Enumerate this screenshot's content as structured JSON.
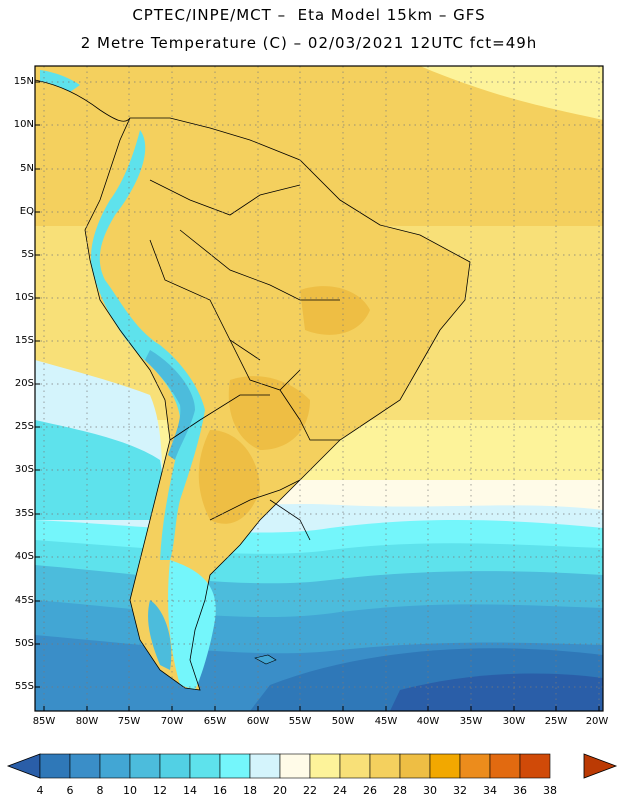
{
  "header": {
    "line1": "CPTEC/INPE/MCT –  Eta Model 15km – GFS",
    "line2": "2 Metre Temperature (C) – 02/03/2021 12UTC fct=49h"
  },
  "map": {
    "lat_labels": [
      "15N",
      "10N",
      "5N",
      "EQ",
      "5S",
      "10S",
      "15S",
      "20S",
      "25S",
      "30S",
      "35S",
      "40S",
      "45S",
      "50S",
      "55S"
    ],
    "lon_labels": [
      "85W",
      "80W",
      "75W",
      "70W",
      "65W",
      "60W",
      "55W",
      "50W",
      "45W",
      "40W",
      "35W",
      "30W",
      "25W",
      "20W"
    ],
    "grid": "dotted",
    "coastline_color": "#000000"
  },
  "colorbar": {
    "levels": [
      "4",
      "6",
      "8",
      "10",
      "12",
      "14",
      "16",
      "18",
      "20",
      "22",
      "24",
      "26",
      "28",
      "30",
      "32",
      "34",
      "36",
      "38"
    ],
    "colors": [
      "#2a5ea8",
      "#2f78b8",
      "#3a8ec8",
      "#42a6d4",
      "#4cbcdc",
      "#52d0e4",
      "#5ee2ec",
      "#74f6fb",
      "#d4f4fc",
      "#fffbe8",
      "#fdf39a",
      "#f8e078",
      "#f4d05e",
      "#eebe44",
      "#f2a800",
      "#ec8c1c",
      "#e26a10",
      "#d04a08",
      "#bb3a04"
    ]
  }
}
